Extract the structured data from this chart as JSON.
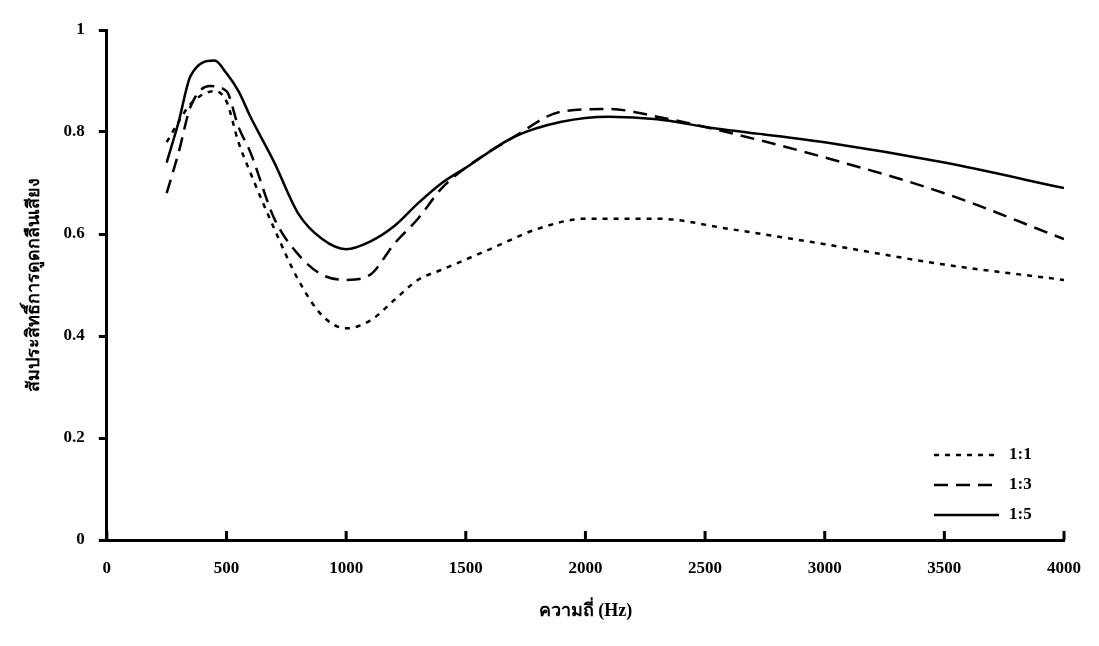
{
  "chart_data": {
    "type": "line",
    "xlabel": "ความถี่ (Hz)",
    "ylabel": "สัมประสิทธิ์การดูดกลืนเสียง",
    "xlim": [
      0,
      4000
    ],
    "xticks": [
      0,
      500,
      1000,
      1500,
      2000,
      2500,
      3000,
      3500,
      4000
    ],
    "ylim": [
      0,
      1
    ],
    "yticks": [
      0,
      0.2,
      0.4,
      0.6,
      0.8,
      1
    ],
    "grid": false,
    "legend": "bottom right",
    "marker": "none",
    "series": [
      {
        "name": "1:1",
        "color": "#000000",
        "line_style": "dotted",
        "x": [
          250,
          300,
          350,
          450,
          500,
          550,
          600,
          700,
          800,
          900,
          1000,
          1100,
          1200,
          1300,
          1400,
          1600,
          1800,
          2000,
          2300,
          2600,
          3000,
          3500,
          4000
        ],
        "values": [
          0.78,
          0.82,
          0.855,
          0.88,
          0.86,
          0.78,
          0.72,
          0.61,
          0.51,
          0.44,
          0.415,
          0.43,
          0.47,
          0.51,
          0.53,
          0.57,
          0.61,
          0.63,
          0.63,
          0.61,
          0.58,
          0.54,
          0.51
        ]
      },
      {
        "name": "1:3",
        "color": "#000000",
        "line_style": "dashed",
        "x": [
          250,
          300,
          350,
          430,
          500,
          550,
          600,
          700,
          800,
          900,
          1000,
          1100,
          1200,
          1300,
          1400,
          1500,
          1700,
          1900,
          2100,
          2300,
          2500,
          3000,
          3500,
          4000
        ],
        "values": [
          0.68,
          0.76,
          0.85,
          0.89,
          0.88,
          0.81,
          0.76,
          0.63,
          0.56,
          0.52,
          0.51,
          0.52,
          0.58,
          0.63,
          0.69,
          0.73,
          0.79,
          0.84,
          0.845,
          0.83,
          0.81,
          0.75,
          0.68,
          0.59
        ]
      },
      {
        "name": "1:5",
        "color": "#000000",
        "line_style": "solid",
        "x": [
          250,
          300,
          350,
          450,
          500,
          550,
          600,
          700,
          800,
          900,
          1000,
          1100,
          1200,
          1300,
          1400,
          1500,
          1700,
          1900,
          2100,
          2300,
          2500,
          3000,
          3500,
          4000
        ],
        "values": [
          0.74,
          0.82,
          0.91,
          0.94,
          0.915,
          0.88,
          0.83,
          0.74,
          0.64,
          0.59,
          0.57,
          0.585,
          0.615,
          0.66,
          0.7,
          0.73,
          0.79,
          0.82,
          0.83,
          0.825,
          0.81,
          0.78,
          0.74,
          0.69
        ]
      }
    ]
  }
}
